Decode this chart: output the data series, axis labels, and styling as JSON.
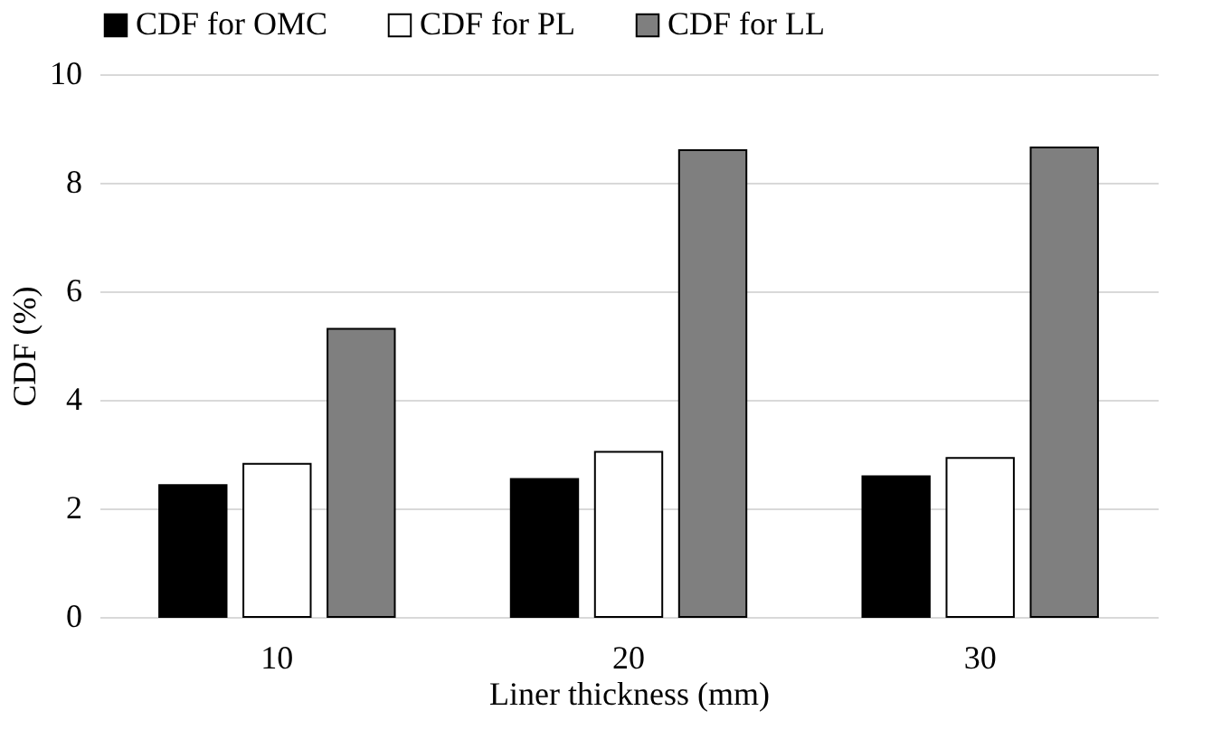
{
  "chart_data": {
    "type": "bar",
    "xlabel": "Liner thickness (mm)",
    "ylabel": "CDF (%)",
    "categories": [
      "10",
      "20",
      "30"
    ],
    "series": [
      {
        "name": "CDF for OMC",
        "color": "#000000",
        "values": [
          2.43,
          2.54,
          2.59
        ]
      },
      {
        "name": "CDF for PL",
        "color": "#ffffff",
        "values": [
          2.82,
          3.04,
          2.93
        ]
      },
      {
        "name": "CDF for LL",
        "color": "#7f7f7f",
        "values": [
          5.31,
          8.6,
          8.65
        ]
      }
    ],
    "ylim": [
      0,
      10
    ],
    "yticks": [
      0,
      2,
      4,
      6,
      8,
      10
    ],
    "grid": "y",
    "legend": "top"
  }
}
